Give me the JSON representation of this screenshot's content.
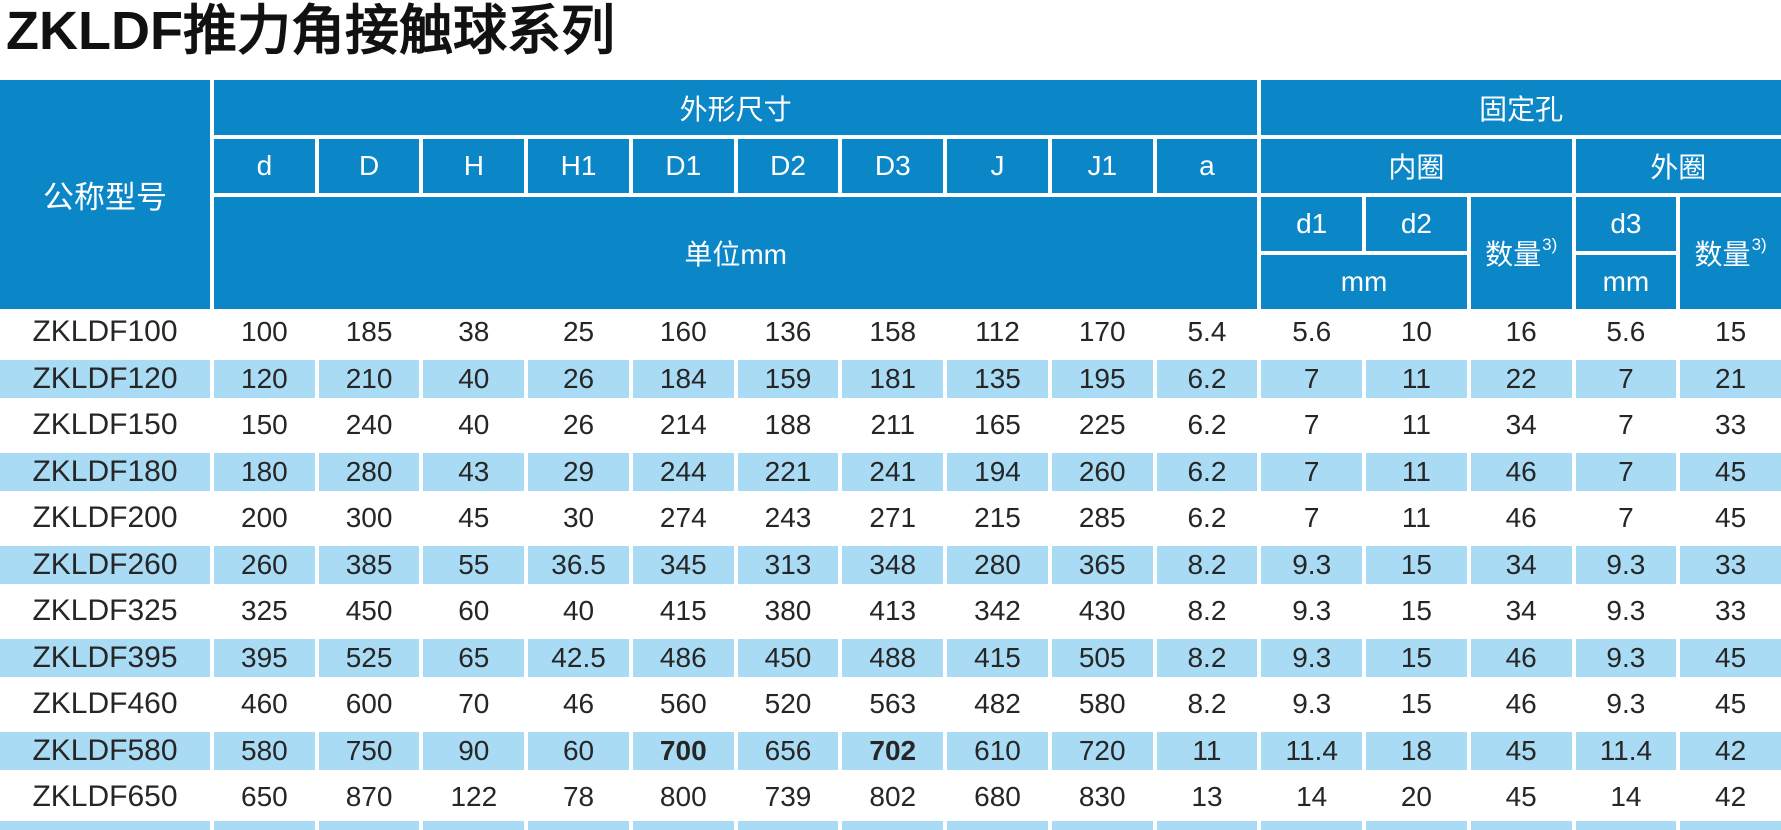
{
  "title": "ZKLDF推力角接触球系列",
  "colors": {
    "header_blue": "#0b86c7",
    "row_alt_blue": "#a9dbf4",
    "text_dark": "#262626"
  },
  "table": {
    "name_header": "公称型号",
    "dimensions_group": "外形尺寸",
    "holes_group": "固定孔",
    "dimension_columns": [
      "d",
      "D",
      "H",
      "H1",
      "D1",
      "D2",
      "D3",
      "J",
      "J1",
      "a"
    ],
    "unit_label": "单位mm",
    "inner_ring": "内圈",
    "outer_ring": "外圈",
    "hole_columns": {
      "d1": "d1",
      "d2": "d2",
      "d3": "d3"
    },
    "qty_label": "数量",
    "qty_sup": "3)",
    "mm": "mm",
    "bold_cells": [
      [
        9,
        4
      ],
      [
        9,
        6
      ]
    ],
    "rows": [
      {
        "model": "ZKLDF100",
        "values": [
          "100",
          "185",
          "38",
          "25",
          "160",
          "136",
          "158",
          "112",
          "170",
          "5.4",
          "5.6",
          "10",
          "16",
          "5.6",
          "15"
        ]
      },
      {
        "model": "ZKLDF120",
        "values": [
          "120",
          "210",
          "40",
          "26",
          "184",
          "159",
          "181",
          "135",
          "195",
          "6.2",
          "7",
          "11",
          "22",
          "7",
          "21"
        ]
      },
      {
        "model": "ZKLDF150",
        "values": [
          "150",
          "240",
          "40",
          "26",
          "214",
          "188",
          "211",
          "165",
          "225",
          "6.2",
          "7",
          "11",
          "34",
          "7",
          "33"
        ]
      },
      {
        "model": "ZKLDF180",
        "values": [
          "180",
          "280",
          "43",
          "29",
          "244",
          "221",
          "241",
          "194",
          "260",
          "6.2",
          "7",
          "11",
          "46",
          "7",
          "45"
        ]
      },
      {
        "model": "ZKLDF200",
        "values": [
          "200",
          "300",
          "45",
          "30",
          "274",
          "243",
          "271",
          "215",
          "285",
          "6.2",
          "7",
          "11",
          "46",
          "7",
          "45"
        ]
      },
      {
        "model": "ZKLDF260",
        "values": [
          "260",
          "385",
          "55",
          "36.5",
          "345",
          "313",
          "348",
          "280",
          "365",
          "8.2",
          "9.3",
          "15",
          "34",
          "9.3",
          "33"
        ]
      },
      {
        "model": "ZKLDF325",
        "values": [
          "325",
          "450",
          "60",
          "40",
          "415",
          "380",
          "413",
          "342",
          "430",
          "8.2",
          "9.3",
          "15",
          "34",
          "9.3",
          "33"
        ]
      },
      {
        "model": "ZKLDF395",
        "values": [
          "395",
          "525",
          "65",
          "42.5",
          "486",
          "450",
          "488",
          "415",
          "505",
          "8.2",
          "9.3",
          "15",
          "46",
          "9.3",
          "45"
        ]
      },
      {
        "model": "ZKLDF460",
        "values": [
          "460",
          "600",
          "70",
          "46",
          "560",
          "520",
          "563",
          "482",
          "580",
          "8.2",
          "9.3",
          "15",
          "46",
          "9.3",
          "45"
        ]
      },
      {
        "model": "ZKLDF580",
        "values": [
          "580",
          "750",
          "90",
          "60",
          "700",
          "656",
          "702",
          "610",
          "720",
          "11",
          "11.4",
          "18",
          "45",
          "11.4",
          "42"
        ]
      },
      {
        "model": "ZKLDF650",
        "values": [
          "650",
          "870",
          "122",
          "78",
          "800",
          "739",
          "802",
          "680",
          "830",
          "13",
          "14",
          "20",
          "45",
          "14",
          "42"
        ]
      }
    ]
  }
}
